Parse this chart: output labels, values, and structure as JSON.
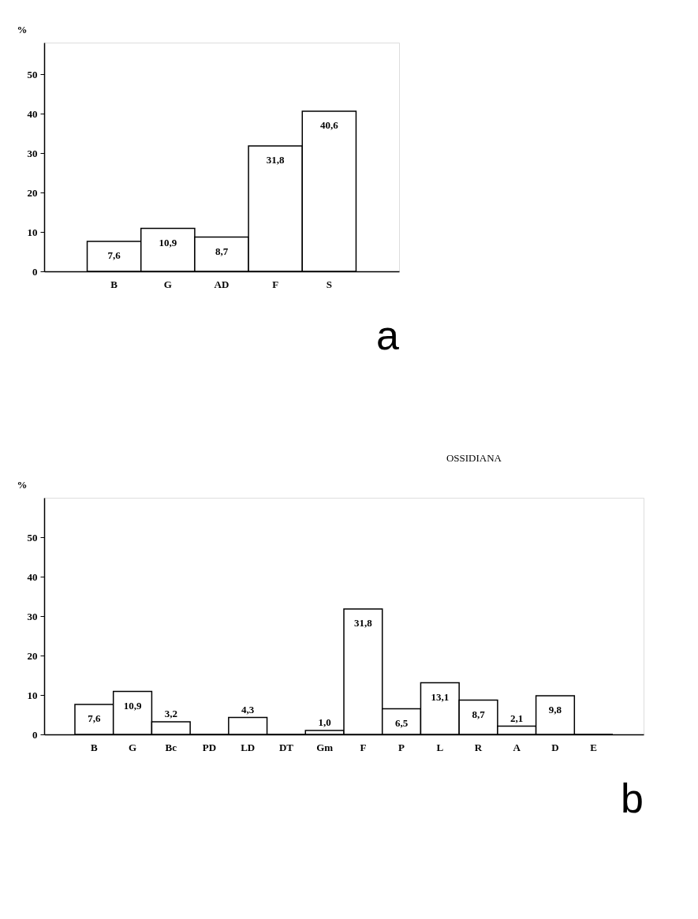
{
  "chart_data": [
    {
      "type": "bar",
      "annotations": [
        "a"
      ],
      "ylabel": "%",
      "categories": [
        "B",
        "G",
        "AD",
        "F",
        "S"
      ],
      "values": [
        7.6,
        10.9,
        8.7,
        31.8,
        40.6
      ],
      "value_labels": [
        "7,6",
        "10,9",
        "8,7",
        "31,8",
        "40,6"
      ],
      "color": "#ffffff",
      "ylim": [
        0,
        58
      ],
      "yticks": [
        0,
        10,
        20,
        30,
        40,
        50
      ],
      "grid": false
    },
    {
      "type": "bar",
      "title": "OSSIDIANA",
      "annotations": [
        "b"
      ],
      "ylabel": "%",
      "categories": [
        "B",
        "G",
        "Bc",
        "PD",
        "LD",
        "DT",
        "Gm",
        "F",
        "P",
        "L",
        "R",
        "A",
        "D",
        "E"
      ],
      "values": [
        7.6,
        10.9,
        3.2,
        0,
        4.3,
        0,
        1.0,
        31.8,
        6.5,
        13.1,
        8.7,
        2.1,
        9.8,
        0
      ],
      "value_labels": [
        "7,6",
        "10,9",
        "3,2",
        null,
        "4,3",
        null,
        "1,0",
        "31,8",
        "6,5",
        "13,1",
        "8,7",
        "2,1",
        "9,8",
        null
      ],
      "color": "#ffffff",
      "ylim": [
        0,
        60
      ],
      "yticks": [
        0,
        10,
        20,
        30,
        40,
        50
      ],
      "grid": false
    }
  ]
}
